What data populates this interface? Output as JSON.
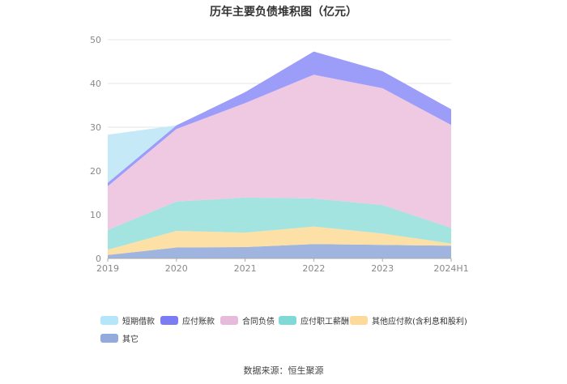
{
  "chart_data": {
    "type": "area",
    "title": "历年主要负债堆积图（亿元）",
    "categories": [
      "2019",
      "2020",
      "2021",
      "2022",
      "2023",
      "2024H1"
    ],
    "ylim": [
      0,
      50
    ],
    "yticks": [
      0,
      10,
      20,
      30,
      40,
      50
    ],
    "stacked": true,
    "grid": true,
    "legend_position": "bottom",
    "series": [
      {
        "name": "其它",
        "color": "#9fb4df",
        "values": [
          0.8,
          2.5,
          2.6,
          3.3,
          3.1,
          2.9
        ]
      },
      {
        "name": "其他应付款(含利息和股利)",
        "color": "#fde0a6",
        "values": [
          1.2,
          3.8,
          3.3,
          4.0,
          2.6,
          0.5
        ]
      },
      {
        "name": "应付职工薪酬",
        "color": "#a3e3e0",
        "values": [
          4.5,
          6.7,
          8.0,
          6.4,
          6.5,
          3.6
        ]
      },
      {
        "name": "合同负债",
        "color": "#efc8e2",
        "values": [
          10.0,
          16.6,
          21.6,
          28.3,
          26.7,
          23.5
        ]
      },
      {
        "name": "应付账款",
        "color": "#9c9cf9",
        "values": [
          0.8,
          0.8,
          2.5,
          5.3,
          3.9,
          3.6
        ]
      },
      {
        "name": "短期借款",
        "color": "#c6e9f8",
        "values": [
          11.0,
          0.0,
          0.0,
          0.0,
          0.0,
          0.0
        ]
      }
    ]
  },
  "legend": {
    "items": [
      {
        "label": "短期借款",
        "color": "#b4e6fa"
      },
      {
        "label": "应付账款",
        "color": "#7b7bf3"
      },
      {
        "label": "合同负债",
        "color": "#e7b9da"
      },
      {
        "label": "应付职工薪酬",
        "color": "#7fd9d6"
      },
      {
        "label": "其他应付款(含利息和股利)",
        "color": "#fdd99a"
      },
      {
        "label": "其它",
        "color": "#93abdc"
      }
    ]
  },
  "source": "数据来源：恒生聚源"
}
